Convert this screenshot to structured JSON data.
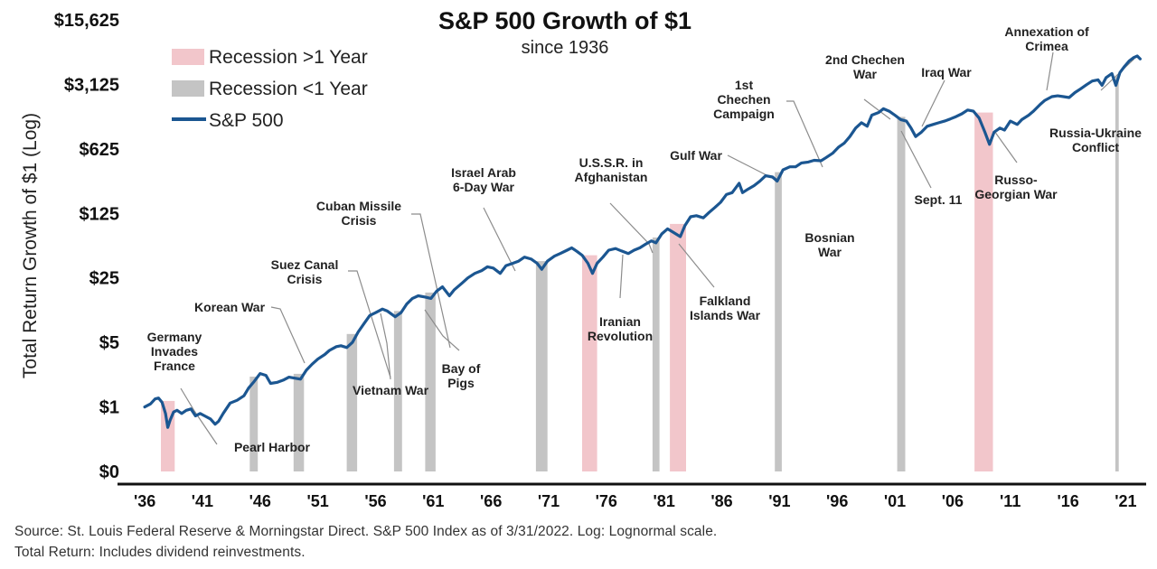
{
  "colors": {
    "recession_long": "#f2c6cb",
    "recession_short": "#c4c4c4",
    "sp500": "#1b5691",
    "axis": "#111111",
    "leader": "#8c8c8c"
  },
  "legend": {
    "recession_long": "Recession >1 Year",
    "recession_short": "Recession <1 Year",
    "sp500": "S&P 500"
  },
  "footer": {
    "source": "Source: St. Louis Federal Reserve & Morningstar Direct. S&P 500 Index as of 3/31/2022. Log: Lognormal scale.",
    "note": "Total Return: Includes dividend reinvestments."
  },
  "chart_data": {
    "type": "line",
    "title": "S&P 500 Growth of $1",
    "subtitle": "since 1936",
    "ylabel": "Total Return Growth of $1 (Log)",
    "xlabel": "",
    "scale": "log",
    "xlim": [
      1935.6,
      2022.3
    ],
    "ylim": [
      0.2,
      15625
    ],
    "y_ticks": [
      {
        "value": 0.2,
        "label": "$0"
      },
      {
        "value": 1,
        "label": "$1"
      },
      {
        "value": 5,
        "label": "$5"
      },
      {
        "value": 25,
        "label": "$25"
      },
      {
        "value": 125,
        "label": "$125"
      },
      {
        "value": 625,
        "label": "$625"
      },
      {
        "value": 3125,
        "label": "$3,125"
      },
      {
        "value": 15625,
        "label": "$15,625"
      }
    ],
    "x_ticks": [
      {
        "value": 1936,
        "label": "'36"
      },
      {
        "value": 1941,
        "label": "'41"
      },
      {
        "value": 1946,
        "label": "'46"
      },
      {
        "value": 1951,
        "label": "'51"
      },
      {
        "value": 1956,
        "label": "'56"
      },
      {
        "value": 1961,
        "label": "'61"
      },
      {
        "value": 1966,
        "label": "'66"
      },
      {
        "value": 1971,
        "label": "'71"
      },
      {
        "value": 1976,
        "label": "'76"
      },
      {
        "value": 1981,
        "label": "'81"
      },
      {
        "value": 1986,
        "label": "'86"
      },
      {
        "value": 1991,
        "label": "'91"
      },
      {
        "value": 1996,
        "label": "'96"
      },
      {
        "value": 2001,
        "label": "'01"
      },
      {
        "value": 2006,
        "label": "'06"
      },
      {
        "value": 2011,
        "label": "'11"
      },
      {
        "value": 2016,
        "label": "'16"
      },
      {
        "value": 2021,
        "label": "'21"
      }
    ],
    "recessions": [
      {
        "start": 1937.4,
        "end": 1938.6,
        "type": "long"
      },
      {
        "start": 1945.1,
        "end": 1945.8,
        "type": "short"
      },
      {
        "start": 1948.9,
        "end": 1949.8,
        "type": "short"
      },
      {
        "start": 1953.5,
        "end": 1954.4,
        "type": "short"
      },
      {
        "start": 1957.6,
        "end": 1958.3,
        "type": "short"
      },
      {
        "start": 1960.3,
        "end": 1961.2,
        "type": "short"
      },
      {
        "start": 1969.9,
        "end": 1970.9,
        "type": "short"
      },
      {
        "start": 1973.9,
        "end": 1975.2,
        "type": "long"
      },
      {
        "start": 1980.0,
        "end": 1980.6,
        "type": "short"
      },
      {
        "start": 1981.5,
        "end": 1982.9,
        "type": "long"
      },
      {
        "start": 1990.6,
        "end": 1991.2,
        "type": "short"
      },
      {
        "start": 2001.2,
        "end": 2001.9,
        "type": "short"
      },
      {
        "start": 2007.9,
        "end": 2009.5,
        "type": "long"
      },
      {
        "start": 2020.1,
        "end": 2020.4,
        "type": "short"
      }
    ],
    "series": [
      {
        "name": "S&P 500",
        "points": [
          [
            1936.0,
            1.0
          ],
          [
            1936.5,
            1.08
          ],
          [
            1936.9,
            1.22
          ],
          [
            1937.2,
            1.25
          ],
          [
            1937.5,
            1.12
          ],
          [
            1937.8,
            0.85
          ],
          [
            1938.0,
            0.6
          ],
          [
            1938.2,
            0.72
          ],
          [
            1938.5,
            0.88
          ],
          [
            1938.8,
            0.92
          ],
          [
            1939.2,
            0.85
          ],
          [
            1939.6,
            0.92
          ],
          [
            1940.0,
            0.95
          ],
          [
            1940.4,
            0.8
          ],
          [
            1940.8,
            0.85
          ],
          [
            1941.2,
            0.8
          ],
          [
            1941.7,
            0.74
          ],
          [
            1942.1,
            0.65
          ],
          [
            1942.4,
            0.7
          ],
          [
            1942.8,
            0.85
          ],
          [
            1943.4,
            1.1
          ],
          [
            1944.0,
            1.18
          ],
          [
            1944.6,
            1.32
          ],
          [
            1945.0,
            1.6
          ],
          [
            1945.5,
            1.9
          ],
          [
            1946.0,
            2.3
          ],
          [
            1946.5,
            2.2
          ],
          [
            1946.9,
            1.8
          ],
          [
            1947.5,
            1.85
          ],
          [
            1948.0,
            1.95
          ],
          [
            1948.5,
            2.1
          ],
          [
            1949.0,
            2.05
          ],
          [
            1949.5,
            2.0
          ],
          [
            1950.0,
            2.5
          ],
          [
            1950.5,
            2.9
          ],
          [
            1951.0,
            3.3
          ],
          [
            1951.6,
            3.7
          ],
          [
            1952.0,
            4.1
          ],
          [
            1952.6,
            4.5
          ],
          [
            1953.0,
            4.6
          ],
          [
            1953.5,
            4.4
          ],
          [
            1954.0,
            5.0
          ],
          [
            1954.5,
            6.5
          ],
          [
            1955.0,
            8.0
          ],
          [
            1955.5,
            9.8
          ],
          [
            1956.0,
            10.5
          ],
          [
            1956.6,
            11.5
          ],
          [
            1957.0,
            11.0
          ],
          [
            1957.7,
            9.5
          ],
          [
            1958.2,
            10.5
          ],
          [
            1958.7,
            13.0
          ],
          [
            1959.2,
            15.0
          ],
          [
            1959.7,
            16.0
          ],
          [
            1960.3,
            15.5
          ],
          [
            1960.8,
            15.0
          ],
          [
            1961.3,
            18.0
          ],
          [
            1961.8,
            20.0
          ],
          [
            1962.4,
            16.0
          ],
          [
            1962.8,
            18.5
          ],
          [
            1963.5,
            22.0
          ],
          [
            1964.0,
            25.0
          ],
          [
            1964.6,
            28.0
          ],
          [
            1965.2,
            30.0
          ],
          [
            1965.7,
            33.0
          ],
          [
            1966.2,
            32.0
          ],
          [
            1966.8,
            28.0
          ],
          [
            1967.3,
            34.0
          ],
          [
            1967.9,
            36.0
          ],
          [
            1968.4,
            38.0
          ],
          [
            1968.9,
            42.0
          ],
          [
            1969.5,
            40.0
          ],
          [
            1970.0,
            36.0
          ],
          [
            1970.4,
            31.0
          ],
          [
            1970.9,
            38.0
          ],
          [
            1971.5,
            43.0
          ],
          [
            1972.0,
            46.0
          ],
          [
            1972.6,
            50.0
          ],
          [
            1973.0,
            53.0
          ],
          [
            1973.5,
            48.0
          ],
          [
            1973.9,
            44.0
          ],
          [
            1974.4,
            36.0
          ],
          [
            1974.8,
            28.0
          ],
          [
            1975.2,
            36.0
          ],
          [
            1975.7,
            42.0
          ],
          [
            1976.2,
            50.0
          ],
          [
            1976.8,
            52.0
          ],
          [
            1977.3,
            49.0
          ],
          [
            1977.9,
            46.0
          ],
          [
            1978.4,
            50.0
          ],
          [
            1978.9,
            53.0
          ],
          [
            1979.4,
            58.0
          ],
          [
            1979.9,
            63.0
          ],
          [
            1980.3,
            60.0
          ],
          [
            1980.8,
            75.0
          ],
          [
            1981.3,
            85.0
          ],
          [
            1981.8,
            78.0
          ],
          [
            1982.4,
            70.0
          ],
          [
            1982.8,
            92.0
          ],
          [
            1983.3,
            115.0
          ],
          [
            1983.8,
            118.0
          ],
          [
            1984.4,
            112.0
          ],
          [
            1984.9,
            128.0
          ],
          [
            1985.4,
            145.0
          ],
          [
            1985.9,
            165.0
          ],
          [
            1986.4,
            200.0
          ],
          [
            1986.9,
            210.0
          ],
          [
            1987.5,
            265.0
          ],
          [
            1987.8,
            210.0
          ],
          [
            1988.3,
            230.0
          ],
          [
            1988.8,
            250.0
          ],
          [
            1989.3,
            280.0
          ],
          [
            1989.8,
            320.0
          ],
          [
            1990.4,
            310.0
          ],
          [
            1990.8,
            280.0
          ],
          [
            1991.3,
            370.0
          ],
          [
            1991.9,
            400.0
          ],
          [
            1992.4,
            400.0
          ],
          [
            1992.9,
            440.0
          ],
          [
            1993.5,
            450.0
          ],
          [
            1994.0,
            470.0
          ],
          [
            1994.6,
            465.0
          ],
          [
            1995.0,
            500.0
          ],
          [
            1995.6,
            560.0
          ],
          [
            1996.1,
            650.0
          ],
          [
            1996.6,
            720.0
          ],
          [
            1997.1,
            850.0
          ],
          [
            1997.6,
            1050.0
          ],
          [
            1998.1,
            1200.0
          ],
          [
            1998.6,
            1100.0
          ],
          [
            1999.0,
            1450.0
          ],
          [
            1999.6,
            1550.0
          ],
          [
            2000.0,
            1700.0
          ],
          [
            2000.5,
            1600.0
          ],
          [
            2001.0,
            1450.0
          ],
          [
            2001.5,
            1300.0
          ],
          [
            2002.0,
            1250.0
          ],
          [
            2002.4,
            1050.0
          ],
          [
            2002.8,
            850.0
          ],
          [
            2003.3,
            950.0
          ],
          [
            2003.8,
            1100.0
          ],
          [
            2004.3,
            1150.0
          ],
          [
            2004.8,
            1200.0
          ],
          [
            2005.3,
            1250.0
          ],
          [
            2005.8,
            1320.0
          ],
          [
            2006.3,
            1400.0
          ],
          [
            2006.8,
            1500.0
          ],
          [
            2007.3,
            1650.0
          ],
          [
            2007.8,
            1600.0
          ],
          [
            2008.3,
            1350.0
          ],
          [
            2008.8,
            950.0
          ],
          [
            2009.2,
            700.0
          ],
          [
            2009.6,
            950.0
          ],
          [
            2010.1,
            1050.0
          ],
          [
            2010.5,
            1000.0
          ],
          [
            2011.0,
            1250.0
          ],
          [
            2011.6,
            1150.0
          ],
          [
            2012.0,
            1300.0
          ],
          [
            2012.6,
            1450.0
          ],
          [
            2013.0,
            1600.0
          ],
          [
            2013.6,
            1900.0
          ],
          [
            2014.0,
            2100.0
          ],
          [
            2014.6,
            2300.0
          ],
          [
            2015.1,
            2350.0
          ],
          [
            2015.6,
            2300.0
          ],
          [
            2016.1,
            2250.0
          ],
          [
            2016.6,
            2550.0
          ],
          [
            2017.1,
            2800.0
          ],
          [
            2017.6,
            3100.0
          ],
          [
            2018.1,
            3400.0
          ],
          [
            2018.6,
            3500.0
          ],
          [
            2018.95,
            3050.0
          ],
          [
            2019.3,
            3700.0
          ],
          [
            2019.8,
            4100.0
          ],
          [
            2020.15,
            3050.0
          ],
          [
            2020.5,
            4200.0
          ],
          [
            2020.9,
            4900.0
          ],
          [
            2021.3,
            5600.0
          ],
          [
            2021.7,
            6100.0
          ],
          [
            2022.0,
            6350.0
          ],
          [
            2022.25,
            5900.0
          ]
        ]
      }
    ],
    "annotations": [
      {
        "lines": [
          "Germany",
          "Invades",
          "France"
        ]
      },
      {
        "lines": [
          "Pearl Harbor"
        ]
      },
      {
        "lines": [
          "Korean War"
        ]
      },
      {
        "lines": [
          "Suez Canal",
          "Crisis"
        ]
      },
      {
        "lines": [
          "Cuban Missile",
          "Crisis"
        ]
      },
      {
        "lines": [
          "Vietnam War"
        ]
      },
      {
        "lines": [
          "Bay of",
          "Pigs"
        ]
      },
      {
        "lines": [
          "Israel Arab",
          "6-Day War"
        ]
      },
      {
        "lines": [
          "U.S.S.R. in",
          "Afghanistan"
        ]
      },
      {
        "lines": [
          "Iranian",
          "Revolution"
        ]
      },
      {
        "lines": [
          "Falkland",
          "Islands War"
        ]
      },
      {
        "lines": [
          "Gulf War"
        ]
      },
      {
        "lines": [
          "1st",
          "Chechen",
          "Campaign"
        ]
      },
      {
        "lines": [
          "Bosnian",
          "War"
        ]
      },
      {
        "lines": [
          "2nd Chechen",
          "War"
        ]
      },
      {
        "lines": [
          "Iraq War"
        ]
      },
      {
        "lines": [
          "Sept. 11"
        ]
      },
      {
        "lines": [
          "Russo-",
          "Georgian War"
        ]
      },
      {
        "lines": [
          "Annexation of",
          "Crimea"
        ]
      },
      {
        "lines": [
          "Russia-Ukraine",
          "Conflict"
        ]
      }
    ]
  }
}
